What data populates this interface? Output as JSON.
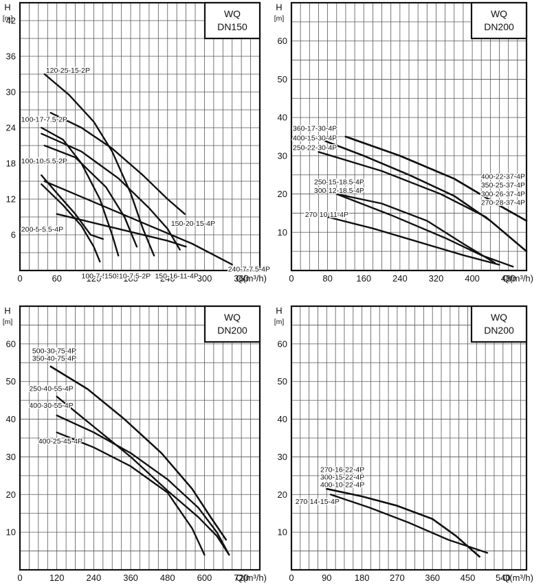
{
  "charts": [
    {
      "type": "line",
      "title_box": [
        "WQ",
        "DN150"
      ],
      "ylabel_lines": [
        "H",
        "[m]"
      ],
      "xlabel": "Q(m³/h)",
      "xlim": [
        0,
        390
      ],
      "ylim": [
        0,
        45
      ],
      "xticks": [
        0,
        60,
        120,
        180,
        240,
        300,
        360
      ],
      "yticks": [
        6,
        12,
        18,
        24,
        30,
        36,
        42
      ],
      "xminor": 15,
      "yminor": 3,
      "series": [
        {
          "name": "120-25-15-2P",
          "x": [
            40,
            80,
            120,
            150,
            180,
            200,
            218
          ],
          "y": [
            33,
            29.5,
            25,
            20,
            13,
            7,
            2.5
          ],
          "label_x": 40,
          "label_y": 33,
          "label_anchor": "start",
          "label_dx": 2,
          "label_dy": -2
        },
        {
          "name": "100-17-7.5-2P",
          "x": [
            35,
            70,
            100,
            130,
            150,
            160
          ],
          "y": [
            24,
            22,
            18,
            12,
            6,
            2.5
          ],
          "label_x": 2,
          "label_y": 25,
          "label_anchor": "start",
          "label_dx": 0,
          "label_dy": 0
        },
        {
          "name": "100-10-5.5-2P",
          "x": [
            35,
            60,
            90,
            115,
            135
          ],
          "y": [
            16,
            13,
            9.5,
            6,
            5.3
          ],
          "label_x": 2,
          "label_y": 18,
          "label_anchor": "start",
          "label_dx": 0,
          "label_dy": 0
        },
        {
          "name": "200-5-5.5-4P",
          "x": [
            60,
            120,
            180,
            240,
            270
          ],
          "y": [
            9.5,
            8,
            6.5,
            5,
            4
          ],
          "label_x": 2,
          "label_y": 6.5,
          "label_anchor": "start",
          "label_dx": 0,
          "label_dy": 0
        },
        {
          "name": "150-20-15-4P",
          "x": [
            50,
            100,
            150,
            200,
            240,
            268
          ],
          "y": [
            26.5,
            24,
            20.5,
            16,
            12,
            9.5
          ],
          "label_x": 268,
          "label_y": 7.5,
          "label_anchor": "start",
          "label_dx": -20,
          "label_dy": 0
        },
        {
          "name": "240-7-7.5-4P",
          "x": [
            40,
            120,
            200,
            280,
            345
          ],
          "y": [
            15,
            11.5,
            8,
            4.5,
            1
          ],
          "label_x": 345,
          "label_y": -0.2,
          "label_anchor": "start",
          "label_dx": -6,
          "label_dy": 0
        },
        {
          "name": "100-7-5.5-2P",
          "x": [
            35,
            70,
            100,
            120,
            130
          ],
          "y": [
            14.5,
            11,
            7.5,
            4,
            1.5
          ],
          "label_x": 100,
          "label_y": -1.3,
          "label_anchor": "start",
          "label_dx": 0,
          "label_dy": 0
        },
        {
          "name": "150-10-7.5-2P",
          "x": [
            40,
            90,
            140,
            170,
            190
          ],
          "y": [
            21,
            19,
            14,
            9,
            4
          ],
          "label_x": 175,
          "label_y": -1.3,
          "label_anchor": "middle",
          "label_dx": 0,
          "label_dy": 0
        },
        {
          "name": "150-16-11-4P",
          "x": [
            35,
            100,
            160,
            210,
            240,
            260
          ],
          "y": [
            23,
            20,
            15.5,
            10.5,
            7,
            3.5
          ],
          "label_x": 255,
          "label_y": -1.3,
          "label_anchor": "middle",
          "label_dx": 0,
          "label_dy": 0
        }
      ]
    },
    {
      "type": "line",
      "title_box": [
        "WQ",
        "DN200"
      ],
      "ylabel_lines": [
        "H",
        "[m]"
      ],
      "xlabel": "Q(m³/h)",
      "xlim": [
        0,
        520
      ],
      "ylim": [
        0,
        70
      ],
      "xticks": [
        0,
        80,
        160,
        240,
        320,
        400,
        480
      ],
      "yticks": [
        10,
        20,
        30,
        40,
        50,
        60
      ],
      "xminor": 20,
      "yminor": 5,
      "series": [
        {
          "name": "360-17-30-4P",
          "x": [
            60,
            160,
            260,
            360,
            440,
            520
          ],
          "y": [
            34.5,
            30,
            25,
            19.5,
            13,
            5
          ],
          "label_x": 0,
          "label_y": 36.5,
          "label_anchor": "start",
          "label_dx": 2,
          "label_dy": 0
        },
        {
          "name": "400-15-30-4P",
          "x": [
            60,
            200,
            330,
            430,
            520
          ],
          "y": [
            31,
            26,
            20,
            14,
            5
          ],
          "label_x": 0,
          "label_y": 34,
          "label_anchor": "start",
          "label_dx": 2,
          "label_dy": 0
        },
        {
          "name": "250-22-30-4P",
          "x": [
            60,
            160,
            260,
            360,
            440,
            520
          ],
          "y": [
            34.5,
            30,
            25,
            19.5,
            13,
            5
          ],
          "label_x": 0,
          "label_y": 31.5,
          "label_anchor": "start",
          "label_dx": 2,
          "label_dy": 0
        },
        {
          "name": "400-22-37-4P",
          "x": [
            120,
            240,
            360,
            460,
            520
          ],
          "y": [
            35,
            30,
            24,
            17,
            13
          ],
          "label_x": 520,
          "label_y": 24,
          "label_anchor": "end",
          "label_dx": -2,
          "label_dy": 0
        },
        {
          "name": "350-25-37-4P",
          "x": [
            120,
            240,
            360,
            460,
            520
          ],
          "y": [
            35,
            30,
            24,
            17,
            13
          ],
          "label_x": 520,
          "label_y": 21.7,
          "label_anchor": "end",
          "label_dx": -2,
          "label_dy": 0
        },
        {
          "name": "300-26-37-4P",
          "x": [
            120,
            240,
            360,
            460,
            520
          ],
          "y": [
            35,
            30,
            24,
            17,
            13
          ],
          "label_x": 520,
          "label_y": 19.4,
          "label_anchor": "end",
          "label_dx": -2,
          "label_dy": 0
        },
        {
          "name": "270-28-37-4P",
          "x": [
            120,
            240,
            360,
            460,
            520
          ],
          "y": [
            35,
            30,
            24,
            17,
            13
          ],
          "label_x": 520,
          "label_y": 17.1,
          "label_anchor": "end",
          "label_dx": -2,
          "label_dy": 0
        },
        {
          "name": "250-15-18.5-4P",
          "x": [
            100,
            200,
            300,
            380,
            450
          ],
          "y": [
            20,
            17.5,
            13,
            7,
            2
          ],
          "label_x": 50,
          "label_y": 22.5,
          "label_anchor": "start",
          "label_dx": 0,
          "label_dy": 0
        },
        {
          "name": "300-12-18.5-4P",
          "x": [
            100,
            220,
            340,
            420,
            490
          ],
          "y": [
            20,
            14.5,
            8.5,
            4,
            1
          ],
          "label_x": 50,
          "label_y": 20.3,
          "label_anchor": "start",
          "label_dx": 0,
          "label_dy": 0
        },
        {
          "name": "270-10-11-4P",
          "x": [
            80,
            180,
            280,
            380,
            460
          ],
          "y": [
            14,
            11,
            7.5,
            4,
            1.5
          ],
          "label_x": 30,
          "label_y": 14,
          "label_anchor": "start",
          "label_dx": 0,
          "label_dy": 0
        }
      ]
    },
    {
      "type": "line",
      "title_box": [
        "WQ",
        "DN200"
      ],
      "ylabel_lines": [
        "H",
        "[m]"
      ],
      "xlabel": "Q(m³/h)",
      "xlim": [
        0,
        780
      ],
      "ylim": [
        0,
        70
      ],
      "xticks": [
        0,
        120,
        240,
        360,
        480,
        600,
        720
      ],
      "yticks": [
        10,
        20,
        30,
        40,
        50,
        60
      ],
      "xminor": 30,
      "yminor": 5,
      "series": [
        {
          "name": "500-30-75-4P",
          "x": [
            100,
            220,
            340,
            460,
            560,
            620,
            670
          ],
          "y": [
            54,
            48,
            40,
            31,
            21.5,
            14,
            8
          ],
          "label_x": 40,
          "label_y": 57.5,
          "label_anchor": "start",
          "label_dx": 0,
          "label_dy": 0
        },
        {
          "name": "350-40-75-4P",
          "x": [
            100,
            220,
            340,
            460,
            560,
            620,
            670
          ],
          "y": [
            54,
            48,
            40,
            31,
            21.5,
            14,
            8
          ],
          "label_x": 40,
          "label_y": 55.5,
          "label_anchor": "start",
          "label_dx": 0,
          "label_dy": 0
        },
        {
          "name": "250-40-55-4P",
          "x": [
            120,
            240,
            360,
            480,
            580,
            640,
            680
          ],
          "y": [
            46,
            38,
            30,
            21,
            14,
            9,
            4
          ],
          "label_x": 30,
          "label_y": 47.5,
          "label_anchor": "start",
          "label_dx": 0,
          "label_dy": 0
        },
        {
          "name": "400-30-55-4P",
          "x": [
            120,
            240,
            360,
            480,
            580,
            640,
            680
          ],
          "y": [
            41,
            36.5,
            31,
            24,
            16.5,
            10,
            4
          ],
          "label_x": 30,
          "label_y": 43,
          "label_anchor": "start",
          "label_dx": 0,
          "label_dy": 0
        },
        {
          "name": "400-25-45-4P",
          "x": [
            120,
            240,
            360,
            480,
            560,
            600
          ],
          "y": [
            36.5,
            32.5,
            27.5,
            20.5,
            11,
            4
          ],
          "label_x": 60,
          "label_y": 33.5,
          "label_anchor": "start",
          "label_dx": 0,
          "label_dy": 0
        }
      ]
    },
    {
      "type": "line",
      "title_box": [
        "WQ",
        "DN200"
      ],
      "ylabel_lines": [
        "H",
        "[m]"
      ],
      "xlabel": "Q(m³/h)",
      "xlim": [
        0,
        600
      ],
      "ylim": [
        0,
        70
      ],
      "xticks": [
        0,
        90,
        180,
        270,
        360,
        450,
        540
      ],
      "yticks": [
        10,
        20,
        30,
        40,
        50,
        60
      ],
      "xminor": 22.5,
      "yminor": 5,
      "series": [
        {
          "name": "270-16-22-4P",
          "x": [
            90,
            180,
            270,
            360,
            420,
            480
          ],
          "y": [
            21.5,
            19.5,
            17,
            13.5,
            9,
            3.5
          ],
          "label_x": 130,
          "label_y": 26,
          "label_anchor": "middle",
          "label_dx": 0,
          "label_dy": 0
        },
        {
          "name": "300-15-22-4P",
          "x": [
            90,
            180,
            270,
            360,
            420,
            480
          ],
          "y": [
            21.5,
            19.5,
            17,
            13.5,
            9,
            3.5
          ],
          "label_x": 130,
          "label_y": 24,
          "label_anchor": "middle",
          "label_dx": 0,
          "label_dy": 0
        },
        {
          "name": "400-10-22-4P",
          "x": [
            90,
            180,
            270,
            360,
            420,
            480
          ],
          "y": [
            21.5,
            19.5,
            17,
            13.5,
            9,
            3.5
          ],
          "label_x": 130,
          "label_y": 22,
          "label_anchor": "middle",
          "label_dx": 0,
          "label_dy": 0
        },
        {
          "name": "270-14-15-4P",
          "x": [
            100,
            200,
            300,
            400,
            500
          ],
          "y": [
            20,
            16.5,
            12.5,
            8,
            4.5
          ],
          "label_x": 10,
          "label_y": 17.5,
          "label_anchor": "start",
          "label_dx": 0,
          "label_dy": 0
        }
      ]
    }
  ],
  "chart_data": [
    {
      "type": "line",
      "title": "WQ DN150",
      "xlabel": "Q(m³/h)",
      "ylabel": "H [m]",
      "xlim": [
        0,
        390
      ],
      "ylim": [
        0,
        45
      ]
    },
    {
      "type": "line",
      "title": "WQ DN200",
      "xlabel": "Q(m³/h)",
      "ylabel": "H [m]",
      "xlim": [
        0,
        520
      ],
      "ylim": [
        0,
        70
      ]
    },
    {
      "type": "line",
      "title": "WQ DN200",
      "xlabel": "Q(m³/h)",
      "ylabel": "H [m]",
      "xlim": [
        0,
        780
      ],
      "ylim": [
        0,
        70
      ]
    },
    {
      "type": "line",
      "title": "WQ DN200",
      "xlabel": "Q(m³/h)",
      "ylabel": "H [m]",
      "xlim": [
        0,
        600
      ],
      "ylim": [
        0,
        70
      ]
    }
  ]
}
